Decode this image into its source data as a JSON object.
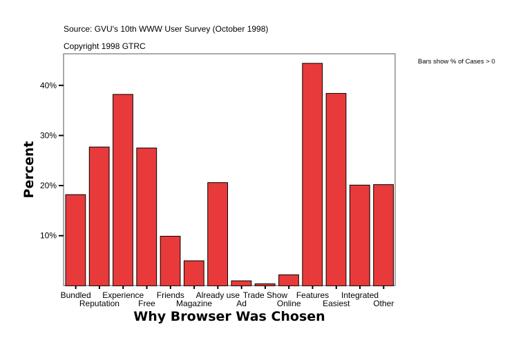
{
  "chart_data": {
    "type": "bar",
    "source": "Source: GVU's 10th WWW User Survey (October 1998)",
    "copyright": "Copyright 1998 GTRC",
    "note": "Bars show % of Cases > 0",
    "xlabel": "Why Browser Was Chosen",
    "ylabel": "Percent",
    "categories": [
      "Bundled",
      "Reputation",
      "Experience",
      "Free",
      "Friends",
      "Magazine",
      "Already use",
      "Ad",
      "Trade Show",
      "Online",
      "Features",
      "Easiest",
      "Integrated",
      "Other"
    ],
    "values": [
      18.2,
      27.7,
      38.2,
      27.5,
      9.9,
      5.0,
      20.6,
      1.0,
      0.4,
      2.2,
      44.4,
      38.4,
      20.1,
      20.2
    ],
    "yticks": [
      10,
      20,
      30,
      40
    ],
    "ytick_labels": [
      "10%",
      "20%",
      "30%",
      "40%"
    ],
    "ylim": [
      0,
      46.3
    ],
    "grid": false,
    "bar_color": "#e83a3a"
  }
}
